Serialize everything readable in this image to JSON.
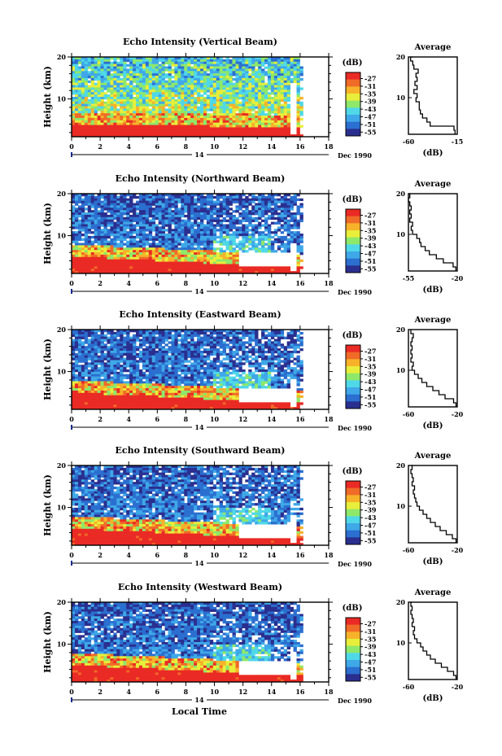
{
  "figure": {
    "xlabel": "Local Time"
  },
  "chart_data": [
    {
      "type": "heatmap",
      "title": "Echo Intensity (Vertical Beam)",
      "ylabel": "Height (km)",
      "ylim": [
        1,
        20
      ],
      "yticks": [
        10,
        20
      ],
      "xlim": [
        0,
        18
      ],
      "xticks": [
        0,
        2,
        4,
        6,
        8,
        10,
        12,
        14,
        16,
        18
      ],
      "date_label": "14",
      "date_suffix": "Dec 1990",
      "colorbar": {
        "unit": "(dB)",
        "levels": [
          -27,
          -31,
          -35,
          -39,
          -43,
          -47,
          -51,
          -55
        ]
      },
      "average": {
        "title": "Average",
        "unit": "(dB)",
        "xlim": [
          -60,
          -15
        ],
        "xticks": [
          -60,
          -15
        ],
        "height": [
          1,
          2,
          3,
          4,
          5,
          6,
          7,
          8,
          9,
          10,
          11,
          12,
          13,
          14,
          15,
          16,
          17,
          18,
          19,
          20
        ],
        "values": [
          -17,
          -18,
          -40,
          -43,
          -47,
          -49,
          -50,
          -50,
          -53,
          -52,
          -55,
          -52,
          -54,
          -52,
          -53,
          -51,
          -55,
          -56,
          -58,
          -56
        ]
      }
    },
    {
      "type": "heatmap",
      "title": "Echo Intensity (Northward Beam)",
      "ylabel": "Height (km)",
      "ylim": [
        1,
        20
      ],
      "yticks": [
        10,
        20
      ],
      "xlim": [
        0,
        18
      ],
      "xticks": [
        0,
        2,
        4,
        6,
        8,
        10,
        12,
        14,
        16,
        18
      ],
      "date_label": "14",
      "date_suffix": "Dec 1990",
      "colorbar": {
        "unit": "(dB)",
        "levels": [
          -27,
          -31,
          -35,
          -39,
          -43,
          -47,
          -51,
          -55
        ]
      },
      "average": {
        "title": "Average",
        "unit": "(dB)",
        "xlim": [
          -55,
          -20
        ],
        "xticks": [
          -55,
          -20
        ],
        "height": [
          1,
          2,
          3,
          4,
          5,
          6,
          7,
          8,
          9,
          10,
          11,
          12,
          13,
          14,
          15,
          16,
          17,
          18,
          19,
          20
        ],
        "values": [
          -21,
          -23,
          -30,
          -35,
          -40,
          -43,
          -46,
          -47,
          -49,
          -52,
          -53,
          -52,
          -54,
          -53,
          -54,
          -53,
          -54,
          -55,
          -54,
          -55
        ]
      }
    },
    {
      "type": "heatmap",
      "title": "Echo Intensity (Eastward Beam)",
      "ylabel": "Height (km)",
      "ylim": [
        1,
        20
      ],
      "yticks": [
        10,
        20
      ],
      "xlim": [
        0,
        18
      ],
      "xticks": [
        0,
        2,
        4,
        6,
        8,
        10,
        12,
        14,
        16,
        18
      ],
      "date_label": "14",
      "date_suffix": "Dec 1990",
      "colorbar": {
        "unit": "(dB)",
        "levels": [
          -27,
          -31,
          -35,
          -39,
          -43,
          -47,
          -51,
          -55
        ]
      },
      "average": {
        "title": "Average",
        "unit": "(dB)",
        "xlim": [
          -60,
          -20
        ],
        "xticks": [
          -60,
          -20
        ],
        "height": [
          1,
          2,
          3,
          4,
          5,
          6,
          7,
          8,
          9,
          10,
          11,
          12,
          13,
          14,
          15,
          16,
          17,
          18,
          19,
          20
        ],
        "values": [
          -21,
          -23,
          -30,
          -35,
          -40,
          -45,
          -49,
          -52,
          -55,
          -57,
          -56,
          -58,
          -57,
          -58,
          -57,
          -58,
          -57,
          -56,
          -58,
          -58
        ]
      }
    },
    {
      "type": "heatmap",
      "title": "Echo Intensity (Southward Beam)",
      "ylabel": "Height (km)",
      "ylim": [
        1,
        20
      ],
      "yticks": [
        10,
        20
      ],
      "xlim": [
        0,
        18
      ],
      "xticks": [
        0,
        2,
        4,
        6,
        8,
        10,
        12,
        14,
        16,
        18
      ],
      "date_label": "14",
      "date_suffix": "Dec 1990",
      "colorbar": {
        "unit": "(dB)",
        "levels": [
          -27,
          -31,
          -35,
          -39,
          -43,
          -47,
          -51,
          -55
        ]
      },
      "average": {
        "title": "Average",
        "unit": "(dB)",
        "xlim": [
          -60,
          -20
        ],
        "xticks": [
          -60,
          -20
        ],
        "height": [
          1,
          2,
          3,
          4,
          5,
          6,
          7,
          8,
          9,
          10,
          11,
          12,
          13,
          14,
          15,
          16,
          17,
          18,
          19,
          20
        ],
        "values": [
          -21,
          -24,
          -29,
          -34,
          -38,
          -42,
          -45,
          -48,
          -51,
          -53,
          -54,
          -55,
          -56,
          -55,
          -57,
          -56,
          -57,
          -58,
          -57,
          -58
        ]
      }
    },
    {
      "type": "heatmap",
      "title": "Echo Intensity (Westward Beam)",
      "ylabel": "Height (km)",
      "ylim": [
        1,
        20
      ],
      "yticks": [
        10,
        20
      ],
      "xlim": [
        0,
        18
      ],
      "xticks": [
        0,
        2,
        4,
        6,
        8,
        10,
        12,
        14,
        16,
        18
      ],
      "date_label": "14",
      "date_suffix": "Dec 1990",
      "colorbar": {
        "unit": "(dB)",
        "levels": [
          -27,
          -31,
          -35,
          -39,
          -43,
          -47,
          -51,
          -55
        ]
      },
      "average": {
        "title": "Average",
        "unit": "(dB)",
        "xlim": [
          -60,
          -20
        ],
        "xticks": [
          -60,
          -20
        ],
        "height": [
          1,
          2,
          3,
          4,
          5,
          6,
          7,
          8,
          9,
          10,
          11,
          12,
          13,
          14,
          15,
          16,
          17,
          18,
          19,
          20
        ],
        "values": [
          -21,
          -23,
          -28,
          -33,
          -38,
          -42,
          -45,
          -48,
          -50,
          -53,
          -55,
          -56,
          -55,
          -57,
          -56,
          -57,
          -58,
          -57,
          -58,
          -57
        ]
      }
    }
  ],
  "colors": [
    "#2a2f8f",
    "#2b6fd0",
    "#3fa8e8",
    "#4fd8e8",
    "#8ee86a",
    "#e8ee3a",
    "#f7b22a",
    "#f06a28",
    "#ea2a24"
  ]
}
